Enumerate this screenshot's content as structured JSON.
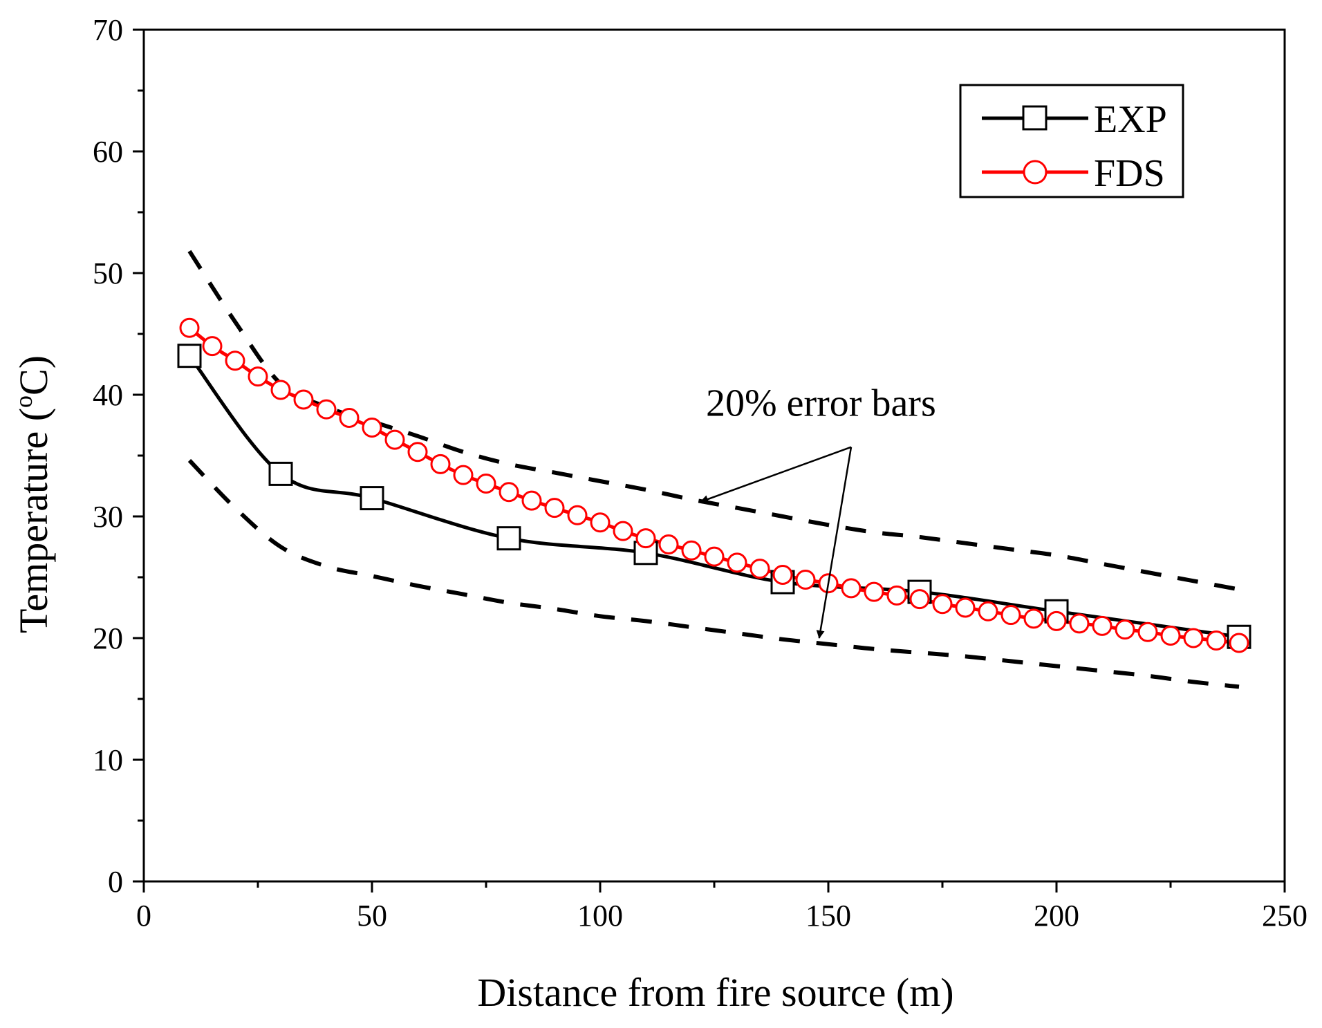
{
  "chart_data": {
    "type": "line",
    "title": "",
    "xlabel": "Distance from fire source (m)",
    "ylabel_prefix": "Temperature (",
    "ylabel_degree": "o",
    "ylabel_suffix": "C)",
    "xlim": [
      0,
      250
    ],
    "ylim": [
      0,
      70
    ],
    "xticks": [
      0,
      50,
      100,
      150,
      200,
      250
    ],
    "xtick_labels": [
      "0",
      "50",
      "100",
      "150",
      "200",
      "250"
    ],
    "yticks": [
      0,
      10,
      20,
      30,
      40,
      50,
      60,
      70
    ],
    "ytick_labels": [
      "0",
      "10",
      "20",
      "30",
      "40",
      "50",
      "60",
      "70"
    ],
    "grid": false,
    "legend_position": "top-right",
    "series": [
      {
        "name": "EXP",
        "color": "#000000",
        "marker": "square",
        "x": [
          10,
          30,
          50,
          80,
          110,
          140,
          170,
          200,
          240
        ],
        "y": [
          43.2,
          33.5,
          31.5,
          28.2,
          27.0,
          24.6,
          23.8,
          22.2,
          20.1
        ]
      },
      {
        "name": "FDS",
        "color": "#ff0000",
        "marker": "circle",
        "x": [
          10,
          15,
          20,
          25,
          30,
          35,
          40,
          45,
          50,
          55,
          60,
          65,
          70,
          75,
          80,
          85,
          90,
          95,
          100,
          105,
          110,
          115,
          120,
          125,
          130,
          135,
          140,
          145,
          150,
          155,
          160,
          165,
          170,
          175,
          180,
          185,
          190,
          195,
          200,
          205,
          210,
          215,
          220,
          225,
          230,
          235,
          240
        ],
        "y": [
          45.5,
          44.0,
          42.8,
          41.5,
          40.4,
          39.6,
          38.8,
          38.1,
          37.3,
          36.3,
          35.3,
          34.3,
          33.4,
          32.7,
          32.0,
          31.3,
          30.7,
          30.1,
          29.5,
          28.8,
          28.2,
          27.7,
          27.2,
          26.7,
          26.2,
          25.7,
          25.2,
          24.8,
          24.5,
          24.1,
          23.8,
          23.5,
          23.2,
          22.8,
          22.5,
          22.2,
          21.9,
          21.6,
          21.4,
          21.2,
          21.0,
          20.7,
          20.5,
          20.2,
          20.0,
          19.8,
          19.6
        ]
      },
      {
        "name": "+20% error bar",
        "color": "#000000",
        "style": "dashed",
        "x": [
          10,
          20,
          30,
          40,
          50,
          60,
          70,
          80,
          90,
          100,
          110,
          120,
          130,
          140,
          150,
          160,
          170,
          180,
          190,
          200,
          210,
          220,
          230,
          240
        ],
        "y": [
          51.8,
          46.0,
          40.9,
          39.0,
          37.8,
          36.6,
          35.3,
          34.3,
          33.6,
          32.9,
          32.2,
          31.4,
          30.7,
          30.0,
          29.3,
          28.7,
          28.3,
          27.8,
          27.3,
          26.8,
          26.1,
          25.4,
          24.7,
          24.0
        ]
      },
      {
        "name": "-20% error bar",
        "color": "#000000",
        "style": "dashed",
        "x": [
          10,
          20,
          30,
          40,
          50,
          60,
          70,
          80,
          90,
          100,
          110,
          120,
          130,
          140,
          150,
          160,
          170,
          180,
          190,
          200,
          210,
          220,
          230,
          240
        ],
        "y": [
          34.6,
          30.7,
          27.5,
          25.9,
          25.1,
          24.3,
          23.6,
          22.9,
          22.4,
          21.8,
          21.4,
          20.9,
          20.4,
          19.9,
          19.5,
          19.1,
          18.8,
          18.5,
          18.1,
          17.7,
          17.3,
          16.9,
          16.4,
          16.0
        ]
      }
    ],
    "annotations": [
      {
        "text": "20% error bars",
        "targets": [
          [
            122,
            31.2
          ],
          [
            148,
            20.0
          ]
        ],
        "origin": [
          155,
          35.7
        ]
      }
    ]
  }
}
